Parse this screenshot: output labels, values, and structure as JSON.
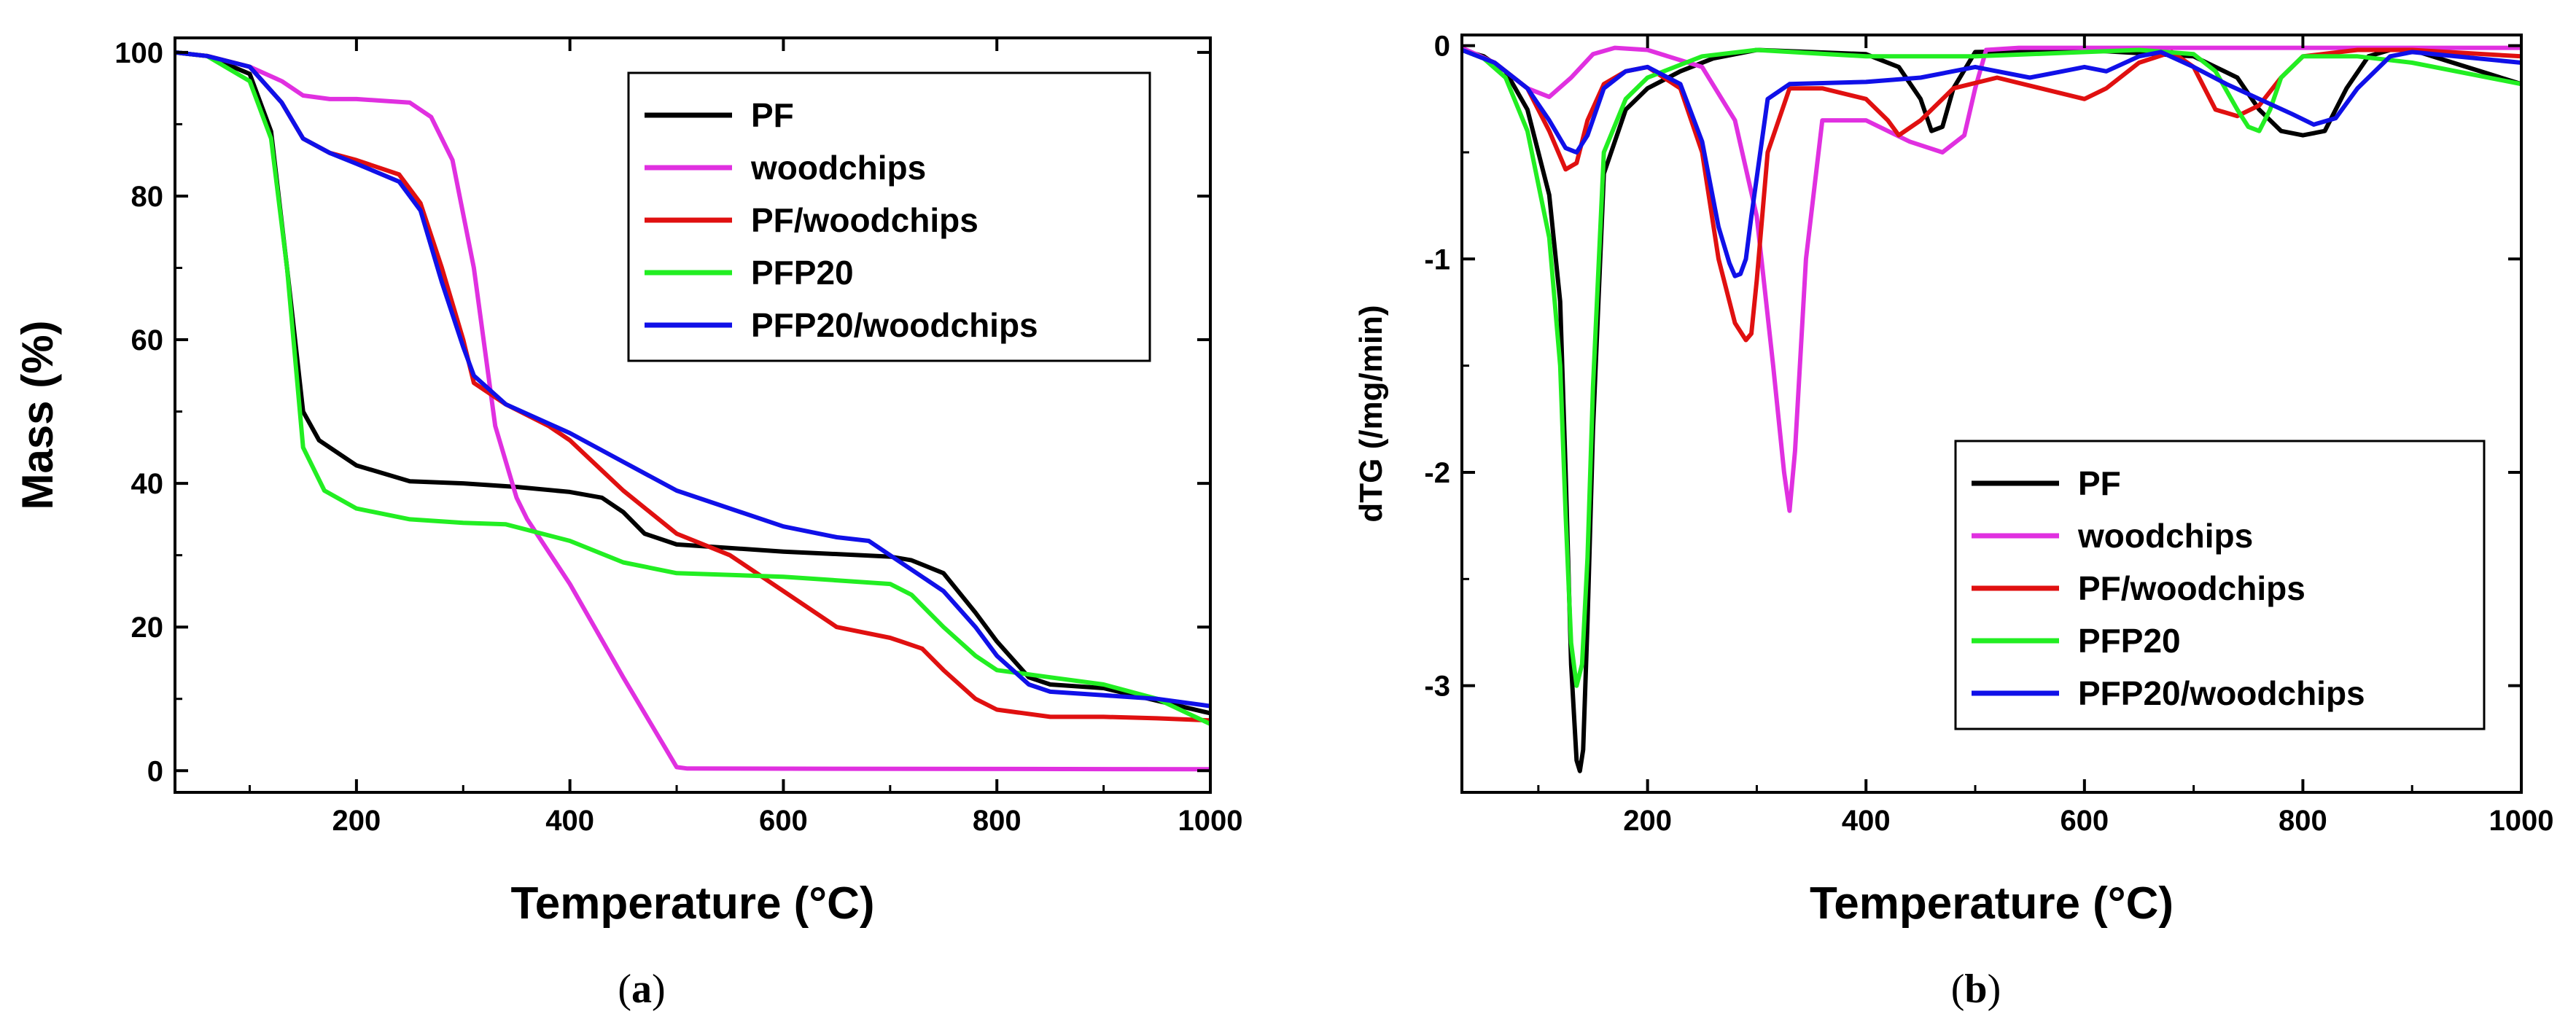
{
  "chart_data": [
    {
      "type": "line",
      "panel": "a",
      "caption_open": "(",
      "caption_letter": "a",
      "caption_close": ")",
      "xlabel": "Temperature (°C)",
      "ylabel": "Mass (%)",
      "xlim": [
        30,
        1000
      ],
      "ylim": [
        -2,
        101
      ],
      "xticks": [
        200,
        400,
        600,
        800,
        1000
      ],
      "yticks": [
        0,
        20,
        40,
        60,
        80,
        100
      ],
      "legend_position": "top-right",
      "series": [
        {
          "name": "PF",
          "color": "#000000",
          "x": [
            30,
            60,
            100,
            120,
            135,
            150,
            165,
            200,
            250,
            300,
            350,
            400,
            430,
            450,
            470,
            500,
            600,
            700,
            720,
            750,
            780,
            800,
            830,
            850,
            900,
            1000
          ],
          "y": [
            100,
            99.5,
            97,
            89,
            70,
            50,
            46,
            42.5,
            40.3,
            40,
            39.5,
            38.8,
            38,
            36,
            33,
            31.5,
            30.5,
            29.8,
            29.3,
            27.5,
            22,
            18,
            13,
            12,
            11.5,
            8
          ]
        },
        {
          "name": "woodchips",
          "color": "#E030E0",
          "x": [
            30,
            60,
            100,
            130,
            150,
            175,
            200,
            250,
            270,
            290,
            310,
            330,
            350,
            360,
            400,
            450,
            490,
            500,
            510,
            1000
          ],
          "y": [
            100,
            99.5,
            98,
            96,
            94,
            93.5,
            93.5,
            93,
            91,
            85,
            70,
            48,
            38,
            35,
            26,
            13,
            3,
            0.5,
            0.3,
            0.2
          ]
        },
        {
          "name": "PF/woodchips",
          "color": "#E01010",
          "x": [
            30,
            60,
            100,
            130,
            150,
            175,
            200,
            240,
            260,
            280,
            300,
            310,
            340,
            380,
            400,
            450,
            500,
            550,
            600,
            650,
            700,
            710,
            730,
            750,
            780,
            800,
            850,
            900,
            950,
            1000
          ],
          "y": [
            100,
            99.5,
            98,
            93,
            88,
            86,
            85,
            83,
            79,
            70,
            60,
            54,
            51,
            48,
            46,
            39,
            33,
            30,
            25,
            20,
            18.5,
            18,
            17,
            14,
            10,
            8.5,
            7.5,
            7.5,
            7.3,
            7
          ]
        },
        {
          "name": "PFP20",
          "color": "#22EE22",
          "x": [
            30,
            60,
            100,
            120,
            135,
            150,
            170,
            200,
            250,
            300,
            340,
            400,
            450,
            500,
            600,
            700,
            720,
            750,
            780,
            800,
            850,
            900,
            950,
            1000
          ],
          "y": [
            100,
            99.5,
            96,
            88,
            70,
            45,
            39,
            36.5,
            35,
            34.5,
            34.3,
            32,
            29,
            27.5,
            27,
            26,
            24.5,
            20,
            16,
            14,
            13,
            12,
            10,
            6.5
          ]
        },
        {
          "name": "PFP20/woodchips",
          "color": "#1010E8",
          "x": [
            30,
            60,
            100,
            130,
            150,
            175,
            200,
            240,
            260,
            280,
            300,
            310,
            340,
            400,
            450,
            500,
            550,
            600,
            650,
            680,
            700,
            750,
            780,
            800,
            830,
            850,
            900,
            950,
            1000
          ],
          "y": [
            100,
            99.5,
            98,
            93,
            88,
            86,
            84.5,
            82,
            78,
            68,
            59,
            55,
            51,
            47,
            43,
            39,
            36.5,
            34,
            32.5,
            32,
            30,
            25,
            20,
            16,
            12,
            11,
            10.5,
            10,
            9
          ]
        }
      ]
    },
    {
      "type": "line",
      "panel": "b",
      "caption_open": "(",
      "caption_letter": "b",
      "caption_close": ")",
      "xlabel": "Temperature (°C)",
      "ylabel": "dTG (/mg/min)",
      "xlim": [
        30,
        1000
      ],
      "ylim": [
        -3.5,
        0.05
      ],
      "xticks": [
        200,
        400,
        600,
        800,
        1000
      ],
      "yticks": [
        0,
        -1,
        -2,
        -3
      ],
      "legend_position": "bottom-right",
      "series": [
        {
          "name": "PF",
          "color": "#000000",
          "x": [
            30,
            50,
            70,
            90,
            110,
            120,
            125,
            130,
            135,
            138,
            141,
            145,
            150,
            160,
            180,
            200,
            230,
            260,
            300,
            350,
            400,
            430,
            450,
            460,
            470,
            480,
            500,
            600,
            700,
            720,
            740,
            760,
            780,
            800,
            820,
            840,
            860,
            880,
            900,
            1000
          ],
          "y": [
            -0.02,
            -0.05,
            -0.12,
            -0.3,
            -0.7,
            -1.2,
            -2.0,
            -2.9,
            -3.35,
            -3.4,
            -3.3,
            -2.7,
            -1.8,
            -0.6,
            -0.3,
            -0.2,
            -0.12,
            -0.06,
            -0.02,
            -0.03,
            -0.04,
            -0.1,
            -0.25,
            -0.4,
            -0.38,
            -0.2,
            -0.03,
            -0.02,
            -0.05,
            -0.1,
            -0.15,
            -0.3,
            -0.4,
            -0.42,
            -0.4,
            -0.2,
            -0.05,
            -0.02,
            -0.02,
            -0.18
          ]
        },
        {
          "name": "woodchips",
          "color": "#E030E0",
          "x": [
            30,
            60,
            90,
            110,
            130,
            150,
            170,
            200,
            250,
            280,
            300,
            315,
            325,
            330,
            335,
            345,
            360,
            400,
            440,
            470,
            490,
            500,
            510,
            540,
            600,
            800,
            1000
          ],
          "y": [
            -0.01,
            -0.08,
            -0.2,
            -0.24,
            -0.15,
            -0.04,
            -0.01,
            -0.02,
            -0.1,
            -0.35,
            -0.8,
            -1.5,
            -2.0,
            -2.18,
            -1.9,
            -1.0,
            -0.35,
            -0.35,
            -0.45,
            -0.5,
            -0.42,
            -0.2,
            -0.02,
            -0.01,
            -0.01,
            -0.01,
            -0.01
          ]
        },
        {
          "name": "PF/woodchips",
          "color": "#E01010",
          "x": [
            30,
            60,
            90,
            110,
            125,
            135,
            145,
            160,
            180,
            200,
            230,
            250,
            265,
            280,
            290,
            295,
            300,
            310,
            330,
            360,
            400,
            420,
            430,
            450,
            480,
            520,
            560,
            600,
            620,
            650,
            680,
            700,
            720,
            740,
            760,
            780,
            800,
            850,
            900,
            1000
          ],
          "y": [
            -0.02,
            -0.08,
            -0.2,
            -0.4,
            -0.58,
            -0.55,
            -0.35,
            -0.18,
            -0.12,
            -0.1,
            -0.2,
            -0.5,
            -1.0,
            -1.3,
            -1.38,
            -1.35,
            -1.1,
            -0.5,
            -0.2,
            -0.2,
            -0.25,
            -0.35,
            -0.42,
            -0.35,
            -0.2,
            -0.15,
            -0.2,
            -0.25,
            -0.2,
            -0.08,
            -0.03,
            -0.1,
            -0.3,
            -0.33,
            -0.28,
            -0.15,
            -0.05,
            -0.02,
            -0.02,
            -0.05
          ]
        },
        {
          "name": "PFP20",
          "color": "#22EE22",
          "x": [
            30,
            50,
            70,
            90,
            110,
            120,
            125,
            130,
            135,
            140,
            145,
            150,
            160,
            180,
            200,
            250,
            300,
            400,
            500,
            600,
            650,
            700,
            720,
            740,
            750,
            760,
            770,
            780,
            800,
            850,
            900,
            1000
          ],
          "y": [
            -0.02,
            -0.06,
            -0.15,
            -0.4,
            -0.9,
            -1.5,
            -2.2,
            -2.8,
            -3.0,
            -2.9,
            -2.4,
            -1.6,
            -0.5,
            -0.25,
            -0.15,
            -0.05,
            -0.02,
            -0.05,
            -0.05,
            -0.03,
            -0.02,
            -0.04,
            -0.12,
            -0.3,
            -0.38,
            -0.4,
            -0.3,
            -0.15,
            -0.05,
            -0.05,
            -0.08,
            -0.18
          ]
        },
        {
          "name": "PFP20/woodchips",
          "color": "#1010E8",
          "x": [
            30,
            60,
            90,
            110,
            125,
            135,
            145,
            160,
            180,
            200,
            230,
            250,
            265,
            275,
            280,
            285,
            290,
            295,
            310,
            330,
            400,
            450,
            500,
            550,
            580,
            600,
            620,
            650,
            670,
            700,
            730,
            760,
            790,
            810,
            830,
            850,
            880,
            900,
            1000
          ],
          "y": [
            -0.02,
            -0.08,
            -0.2,
            -0.35,
            -0.48,
            -0.5,
            -0.42,
            -0.2,
            -0.12,
            -0.1,
            -0.18,
            -0.45,
            -0.85,
            -1.02,
            -1.08,
            -1.07,
            -1.0,
            -0.8,
            -0.25,
            -0.18,
            -0.17,
            -0.15,
            -0.1,
            -0.15,
            -0.12,
            -0.1,
            -0.12,
            -0.05,
            -0.03,
            -0.1,
            -0.18,
            -0.25,
            -0.32,
            -0.37,
            -0.34,
            -0.2,
            -0.05,
            -0.03,
            -0.08
          ]
        }
      ]
    }
  ]
}
